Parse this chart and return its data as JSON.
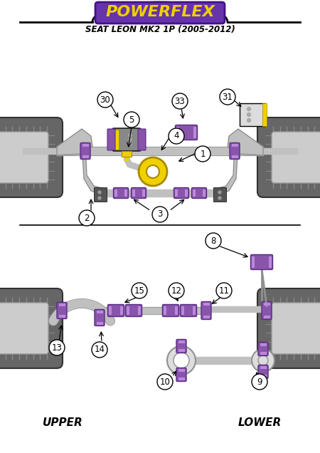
{
  "title_main": "POWERFLEX",
  "title_sub": "SEAT LEON MK2 1P (2005-2012)",
  "bg_color": "#ffffff",
  "arm_color": "#c0c0c0",
  "arm_dark": "#909090",
  "purple": "#8855aa",
  "purple_dark": "#5a2d82",
  "yellow": "#f0d000",
  "yellow_dark": "#c8aa00",
  "dark_gray": "#555555",
  "mid_gray": "#999999",
  "light_gray": "#dddddd",
  "tire_dark": "#555555",
  "tire_mid": "#777777",
  "tire_light": "#cccccc",
  "label_upper": "UPPER",
  "label_lower": "LOWER",
  "logo_bg": "#6633aa",
  "logo_border": "#441188"
}
